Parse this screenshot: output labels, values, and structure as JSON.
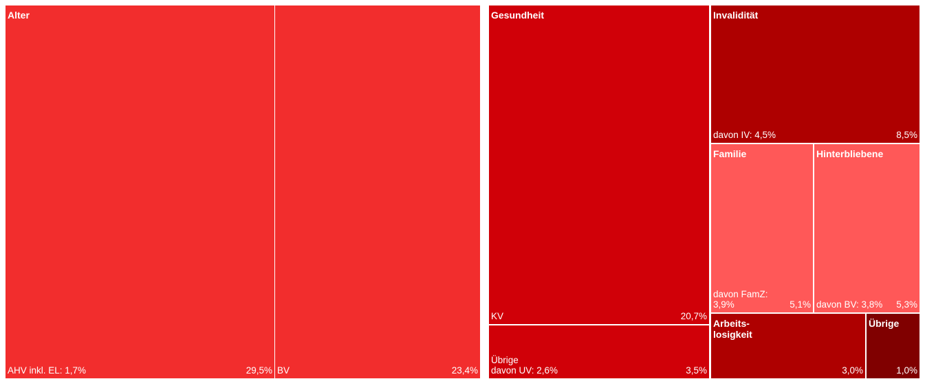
{
  "chart_data": {
    "type": "treemap",
    "title": "",
    "colors": {
      "alter": "#f22d2d",
      "gesundheit": "#d00008",
      "invaliditaet": "#ae0000",
      "familie": "#ff5858",
      "hinterbliebene": "#ff5858",
      "arbeitslosigkeit": "#ae0000",
      "uebrige": "#800000",
      "border": "#ffffff"
    },
    "tiles": [
      {
        "id": "alter-ahv",
        "group": "Alter",
        "name": "Alter",
        "sub": "AHV inkl. EL: 1,7%",
        "value": 29.5,
        "value_label": "29,5%",
        "color_key": "alter"
      },
      {
        "id": "alter-bv",
        "group": "Alter",
        "name": "",
        "sub": "BV",
        "value": 23.4,
        "value_label": "23,4%",
        "color_key": "alter"
      },
      {
        "id": "gesundheit-kv",
        "group": "Gesundheit",
        "name": "Gesundheit",
        "sub": "KV",
        "value": 20.7,
        "value_label": "20,7%",
        "color_key": "gesundheit"
      },
      {
        "id": "gesundheit-uebrige",
        "group": "Gesundheit",
        "name": "",
        "sub": "Übrige\ndavon UV: 2,6%",
        "value": 3.5,
        "value_label": "3,5%",
        "color_key": "gesundheit"
      },
      {
        "id": "invaliditaet",
        "group": "Invalidität",
        "name": "Invalidität",
        "sub": "davon IV: 4,5%",
        "value": 8.5,
        "value_label": "8,5%",
        "color_key": "invaliditaet"
      },
      {
        "id": "familie",
        "group": "Familie",
        "name": "Familie",
        "sub": "davon FamZ:\n3,9%",
        "value": 5.1,
        "value_label": "5,1%",
        "color_key": "familie"
      },
      {
        "id": "hinterbliebene",
        "group": "Hinterbliebene",
        "name": "Hinterbliebene",
        "sub": "davon BV: 3,8%",
        "value": 5.3,
        "value_label": "5,3%",
        "color_key": "hinterbliebene"
      },
      {
        "id": "arbeitslosigkeit",
        "group": "Arbeitslosigkeit",
        "name": "Arbeits-\nlosigkeit",
        "sub": "",
        "value": 3.0,
        "value_label": "3,0%",
        "color_key": "arbeitslosigkeit"
      },
      {
        "id": "uebrige",
        "group": "Übrige",
        "name": "Übrige",
        "sub": "",
        "value": 1.0,
        "value_label": "1,0%",
        "color_key": "uebrige"
      }
    ]
  }
}
